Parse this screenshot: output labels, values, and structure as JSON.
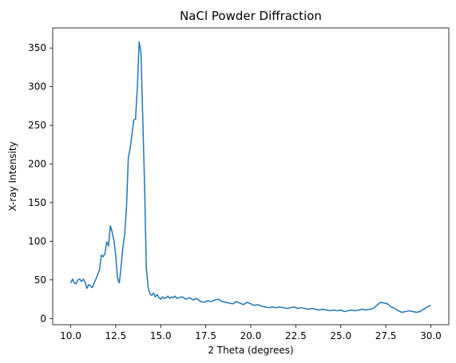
{
  "chart_data": {
    "type": "line",
    "title": "NaCl Powder Diffraction",
    "xlabel": "2 Theta (degrees)",
    "ylabel": "X-ray Intensity",
    "xlim": [
      9.0,
      31.0
    ],
    "ylim": [
      -8,
      376
    ],
    "xticks": [
      10.0,
      12.5,
      15.0,
      17.5,
      20.0,
      22.5,
      25.0,
      27.5,
      30.0
    ],
    "xtick_labels": [
      "10.0",
      "12.5",
      "15.0",
      "17.5",
      "20.0",
      "22.5",
      "25.0",
      "27.5",
      "30.0"
    ],
    "yticks": [
      0,
      50,
      100,
      150,
      200,
      250,
      300,
      350
    ],
    "ytick_labels": [
      "0",
      "50",
      "100",
      "150",
      "200",
      "250",
      "300",
      "350"
    ],
    "grid": false,
    "series": [
      {
        "color": "#1f77b4",
        "x": [
          10.0,
          10.1,
          10.2,
          10.3,
          10.4,
          10.5,
          10.6,
          10.7,
          10.8,
          10.9,
          11.0,
          11.1,
          11.2,
          11.3,
          11.4,
          11.5,
          11.6,
          11.7,
          11.8,
          11.9,
          12.0,
          12.1,
          12.2,
          12.3,
          12.4,
          12.5,
          12.6,
          12.7,
          12.8,
          12.9,
          13.0,
          13.1,
          13.2,
          13.3,
          13.4,
          13.5,
          13.6,
          13.7,
          13.8,
          13.9,
          14.0,
          14.1,
          14.2,
          14.3,
          14.4,
          14.5,
          14.6,
          14.7,
          14.8,
          14.9,
          15.0,
          15.1,
          15.2,
          15.3,
          15.4,
          15.5,
          15.6,
          15.7,
          15.8,
          15.9,
          16.0,
          16.2,
          16.4,
          16.6,
          16.8,
          17.0,
          17.2,
          17.4,
          17.6,
          17.8,
          18.0,
          18.2,
          18.4,
          18.6,
          18.8,
          19.0,
          19.2,
          19.4,
          19.6,
          19.8,
          20.0,
          20.2,
          20.4,
          20.6,
          20.8,
          21.0,
          21.2,
          21.4,
          21.6,
          21.8,
          22.0,
          22.2,
          22.4,
          22.6,
          22.8,
          23.0,
          23.2,
          23.4,
          23.6,
          23.8,
          24.0,
          24.2,
          24.4,
          24.6,
          24.8,
          25.0,
          25.2,
          25.4,
          25.6,
          25.8,
          26.0,
          26.2,
          26.4,
          26.6,
          26.8,
          27.0,
          27.2,
          27.4,
          27.6,
          27.8,
          28.0,
          28.2,
          28.4,
          28.6,
          28.8,
          29.0,
          29.2,
          29.4,
          29.6,
          29.8,
          30.0
        ],
        "y": [
          46,
          51,
          46,
          45,
          50,
          51,
          48,
          51,
          47,
          39,
          44,
          42,
          40,
          46,
          51,
          57,
          63,
          82,
          80,
          84,
          99,
          94,
          120,
          112,
          101,
          82,
          52,
          46,
          68,
          92,
          110,
          145,
          208,
          220,
          238,
          257,
          258,
          298,
          358,
          345,
          260,
          175,
          65,
          40,
          32,
          30,
          33,
          28,
          31,
          27,
          25,
          28,
          26,
          27,
          29,
          26,
          28,
          27,
          29,
          26,
          27,
          28,
          25,
          27,
          24,
          26,
          22,
          21,
          23,
          22,
          24,
          25,
          22,
          21,
          20,
          19,
          22,
          20,
          18,
          21,
          19,
          17,
          18,
          16,
          15,
          14,
          15,
          14,
          15,
          14,
          13,
          14,
          15,
          13,
          14,
          13,
          12,
          13,
          12,
          11,
          12,
          11,
          10,
          11,
          10,
          11,
          9,
          10,
          11,
          10,
          11,
          12,
          11,
          12,
          13,
          17,
          21,
          20,
          19,
          15,
          13,
          10,
          8,
          9,
          10,
          9,
          8,
          9,
          12,
          15,
          17
        ]
      }
    ]
  }
}
